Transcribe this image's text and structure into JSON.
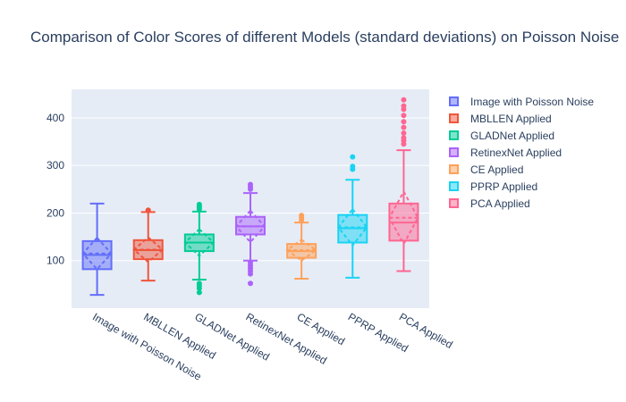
{
  "chart_data": {
    "type": "box",
    "title": "Comparison of Color Scores of different Models (standard deviations) on Poisson Noise",
    "xlabel": "",
    "ylabel": "",
    "ylim": [
      0,
      460
    ],
    "yticks": [
      100,
      200,
      300,
      400
    ],
    "grid": true,
    "legend_position": "right",
    "categories": [
      "Image with Poisson Noise",
      "MBLLEN Applied",
      "GLADNet Applied",
      "RetinexNet Applied",
      "CE Applied",
      "PPRP Applied",
      "PCA Applied"
    ],
    "series": [
      {
        "name": "Image with Poisson Noise",
        "color": "#636efa",
        "min": 28,
        "q1": 82,
        "median": 112,
        "q3": 141,
        "max": 220,
        "mean": 115,
        "sd": 33,
        "outliers": []
      },
      {
        "name": "MBLLEN Applied",
        "color": "#EF553B",
        "min": 58,
        "q1": 103,
        "median": 122,
        "q3": 143,
        "max": 202,
        "mean": 123,
        "sd": 26,
        "outliers": [
          205,
          206
        ]
      },
      {
        "name": "GLADNet Applied",
        "color": "#00cc96",
        "min": 60,
        "q1": 120,
        "median": 138,
        "q3": 155,
        "max": 203,
        "mean": 138,
        "sd": 28,
        "outliers": [
          33,
          42,
          47,
          52,
          208,
          212,
          215,
          218
        ]
      },
      {
        "name": "RetinexNet Applied",
        "color": "#ab63fa",
        "min": 100,
        "q1": 155,
        "median": 172,
        "q3": 192,
        "max": 242,
        "mean": 172,
        "sd": 33,
        "outliers": [
          52,
          72,
          78,
          84,
          90,
          96,
          250,
          255,
          260
        ]
      },
      {
        "name": "CE Applied",
        "color": "#FFA15A",
        "min": 62,
        "q1": 106,
        "median": 120,
        "q3": 135,
        "max": 180,
        "mean": 122,
        "sd": 22,
        "outliers": [
          185,
          190,
          195
        ]
      },
      {
        "name": "PPRP Applied",
        "color": "#19d3f3",
        "min": 64,
        "q1": 138,
        "median": 168,
        "q3": 196,
        "max": 270,
        "mean": 170,
        "sd": 38,
        "outliers": [
          292,
          298,
          318
        ]
      },
      {
        "name": "PCA Applied",
        "color": "#FF6692",
        "min": 78,
        "q1": 142,
        "median": 180,
        "q3": 220,
        "max": 332,
        "mean": 190,
        "sd": 55,
        "outliers": [
          345,
          352,
          358,
          368,
          380,
          392,
          405,
          418,
          425,
          438
        ]
      }
    ]
  }
}
